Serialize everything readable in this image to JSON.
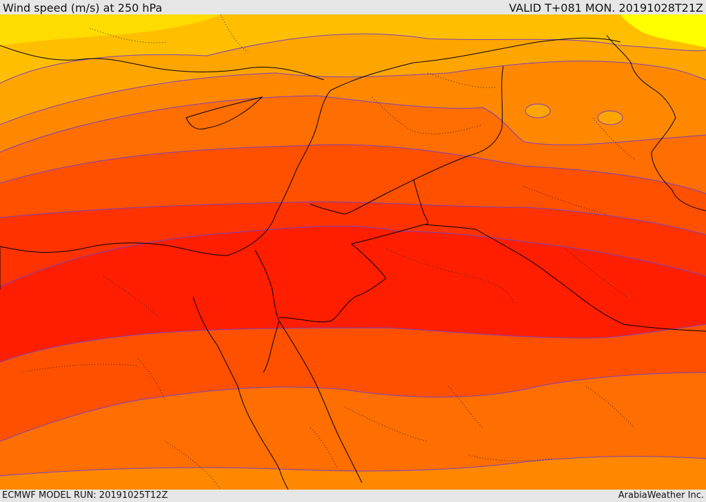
{
  "header": {
    "title": "Wind speed (m/s) at 250 hPa",
    "valid": "VALID T+081 MON. 20191028T21Z"
  },
  "footer": {
    "model_run": "ECMWF MODEL RUN: 20191025T12Z",
    "credit": "ArabiaWeather Inc."
  },
  "map": {
    "variable": "wind speed at 250 hPa",
    "units": "m/s",
    "band_colors": [
      "#ffff00",
      "#ffd200",
      "#ffbf00",
      "#ffa500",
      "#ff8800",
      "#ff6e00",
      "#ff5000",
      "#ff3200",
      "#ff1e00"
    ],
    "contour_color": "#7a3fc0",
    "border_color": "#000000"
  }
}
